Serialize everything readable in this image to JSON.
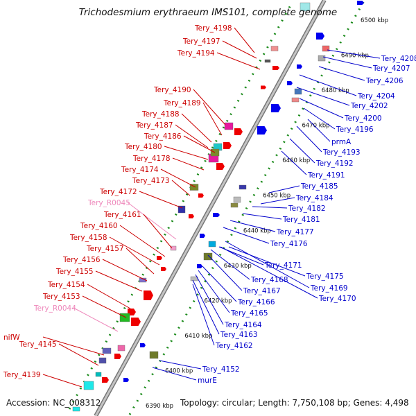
{
  "title": "Trichodesmium erythraeum IMS101, complete genome",
  "accession_label": "Accession: NC_008312",
  "summary_label": "Topology: circular; Length: 7,750,108 bp; Genes: 4,498",
  "colors": {
    "forward_label": "#cc0000",
    "reverse_label": "#0000cc",
    "rna_label": "#ee88bb",
    "axis": "#9a9a9a",
    "tick": "#1a8a1a",
    "forward_arrow": "#ee0000",
    "reverse_arrow": "#0000ee"
  },
  "scale_ticks": [
    {
      "kbp": 6390,
      "label": "6390 kbp"
    },
    {
      "kbp": 6400,
      "label": "6400 kbp"
    },
    {
      "kbp": 6410,
      "label": "6410 kbp"
    },
    {
      "kbp": 6420,
      "label": "6420 kbp"
    },
    {
      "kbp": 6430,
      "label": "6430 kbp"
    },
    {
      "kbp": 6440,
      "label": "6440 kbp"
    },
    {
      "kbp": 6450,
      "label": "6450 kbp"
    },
    {
      "kbp": 6460,
      "label": "6460 kbp"
    },
    {
      "kbp": 6470,
      "label": "6470 kbp"
    },
    {
      "kbp": 6480,
      "label": "6480 kbp"
    },
    {
      "kbp": 6490,
      "label": "6490 kbp"
    },
    {
      "kbp": 6500,
      "label": "6500 kbp"
    }
  ],
  "forward_genes": [
    "Tery_4198",
    "Tery_4197",
    "Tery_4194",
    "Tery_4190",
    "Tery_4189",
    "Tery_4188",
    "Tery_4187",
    "Tery_4186",
    "Tery_4180",
    "Tery_4178",
    "Tery_4174",
    "Tery_4173",
    "Tery_4172",
    "Tery_R0045",
    "Tery_4161",
    "Tery_4160",
    "Tery_4158",
    "Tery_4157",
    "Tery_4156",
    "Tery_4155",
    "Tery_4154",
    "Tery_4153",
    "Tery_R0044",
    "nifW",
    "Tery_4145",
    "Tery_4139"
  ],
  "reverse_genes": [
    "Tery_4208",
    "Tery_4207",
    "Tery_4206",
    "Tery_4204",
    "Tery_4202",
    "Tery_4200",
    "Tery_4196",
    "prmA",
    "Tery_4193",
    "Tery_4192",
    "Tery_4191",
    "Tery_4185",
    "Tery_4184",
    "Tery_4182",
    "Tery_4181",
    "Tery_4177",
    "Tery_4176",
    "Tery_4171",
    "Tery_4175",
    "Tery_4168",
    "Tery_4169",
    "Tery_4167",
    "Tery_4170",
    "Tery_4166",
    "Tery_4165",
    "Tery_4164",
    "Tery_4163",
    "Tery_4162",
    "Tery_4152",
    "murE"
  ]
}
